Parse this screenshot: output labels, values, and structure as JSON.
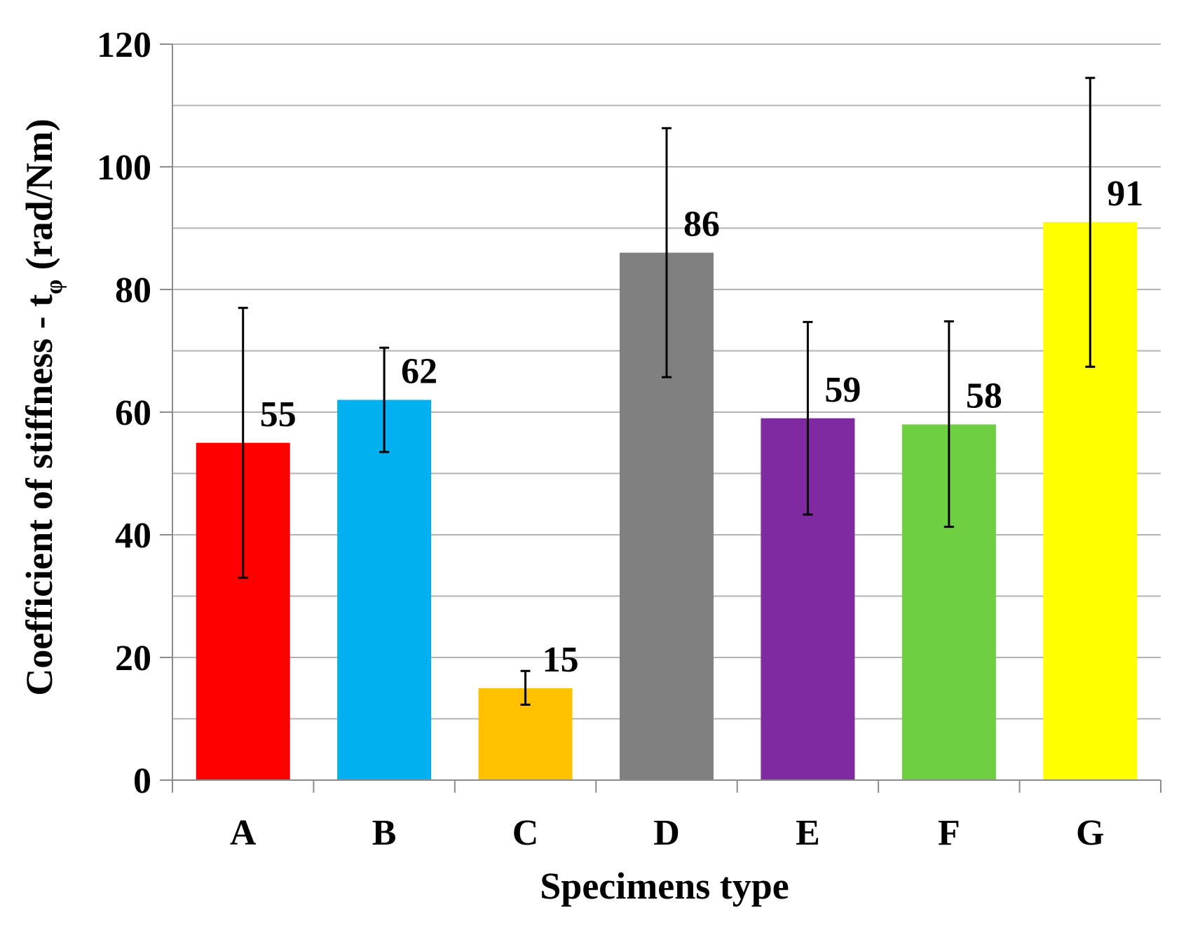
{
  "chart_data": {
    "type": "bar",
    "title": "",
    "xlabel": "Specimens type",
    "ylabel_main": "Coefficient  of stiffness - t",
    "ylabel_sub": "φ",
    "ylabel_unit": " (rad/Nm)",
    "categories": [
      "A",
      "B",
      "C",
      "D",
      "E",
      "F",
      "G"
    ],
    "values": [
      55,
      62,
      15,
      86,
      59,
      58,
      91
    ],
    "data_labels": [
      "55",
      "62",
      "15",
      "86",
      "59",
      "58",
      "91"
    ],
    "error_low": [
      33,
      53.5,
      12.3,
      65.7,
      43.3,
      41.3,
      67.4
    ],
    "error_high": [
      77,
      70.5,
      17.8,
      106.3,
      74.7,
      74.8,
      114.5
    ],
    "colors": [
      "#ff0000",
      "#00b0f0",
      "#ffc000",
      "#808080",
      "#7f2aa1",
      "#6fcf40",
      "#ffff00"
    ],
    "ylim": [
      0,
      120
    ],
    "yticks": [
      0,
      20,
      40,
      60,
      80,
      100,
      120
    ],
    "ytick_labels": [
      "0",
      "20",
      "40",
      "60",
      "80",
      "100",
      "120"
    ],
    "minor_grid_step": 10,
    "grid": true,
    "legend": "none"
  }
}
